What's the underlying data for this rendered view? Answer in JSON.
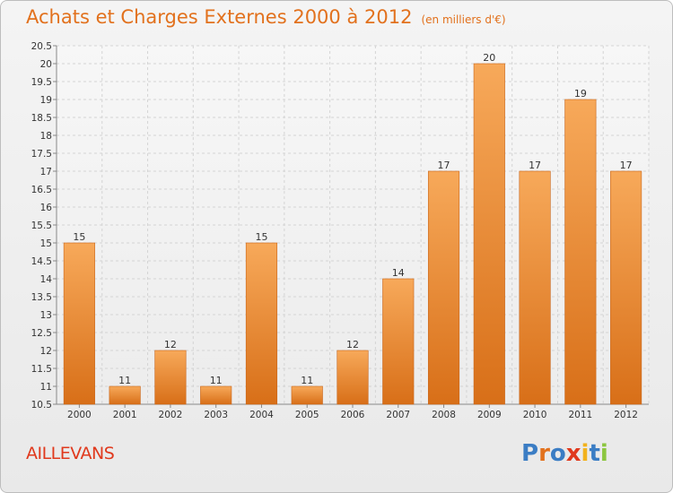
{
  "header": {
    "title": "Achats et Charges Externes 2000 à 2012",
    "unit": "(en milliers d'€)"
  },
  "commune": "AILLEVANS",
  "logo": {
    "text": "Proxiti",
    "letter_colors": [
      "#3b7dc4",
      "#e2711d",
      "#3b7dc4",
      "#e0391d",
      "#f2b21c",
      "#3b7dc4",
      "#8cc63f"
    ]
  },
  "colors": {
    "bar_top": "#f7a95a",
    "bar_bottom": "#d86f18",
    "title": "#e2711d",
    "commune": "#e0391d"
  },
  "chart_data": {
    "type": "bar",
    "categories": [
      "2000",
      "2001",
      "2002",
      "2003",
      "2004",
      "2005",
      "2006",
      "2007",
      "2008",
      "2009",
      "2010",
      "2011",
      "2012"
    ],
    "values": [
      15,
      11,
      12,
      11,
      15,
      11,
      12,
      14,
      17,
      20,
      17,
      19,
      17
    ],
    "data_labels": [
      "15",
      "11",
      "12",
      "11",
      "15",
      "11",
      "12",
      "14",
      "17",
      "20",
      "17",
      "19",
      "17"
    ],
    "ylim": [
      10.5,
      20.5
    ],
    "yticks": [
      10.5,
      11,
      11.5,
      12,
      12.5,
      13,
      13.5,
      14,
      14.5,
      15,
      15.5,
      16,
      16.5,
      17,
      17.5,
      18,
      18.5,
      19,
      19.5,
      20,
      20.5
    ],
    "ytick_labels": [
      "10.5",
      "11",
      "11.5",
      "12",
      "12.5",
      "13",
      "13.5",
      "14",
      "14.5",
      "15",
      "15.5",
      "16",
      "16.5",
      "17",
      "17.5",
      "18",
      "18.5",
      "19",
      "19.5",
      "20",
      "20.5"
    ],
    "xlabel": "",
    "ylabel": "",
    "grid": true,
    "legend": "none"
  }
}
